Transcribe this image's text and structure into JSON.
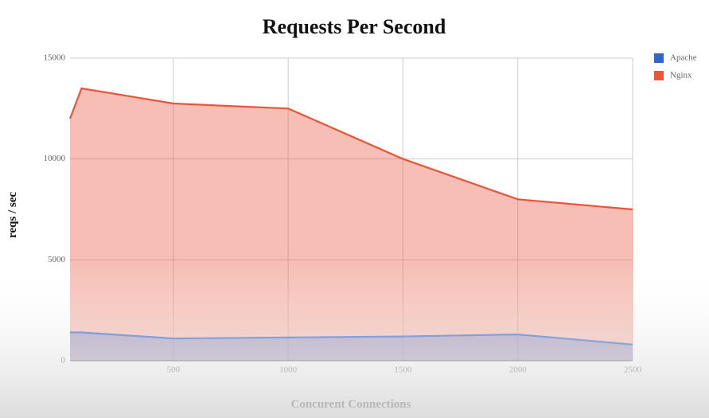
{
  "chart_data": {
    "type": "area",
    "title": "Requests Per Second",
    "x_label": "Concurent Connections",
    "y_label": "reqs / sec",
    "x": [
      50,
      100,
      500,
      1000,
      1500,
      2000,
      2500
    ],
    "series": [
      {
        "name": "Apache",
        "color": "#3366cc",
        "values": [
          1400,
          1400,
          1100,
          1150,
          1200,
          1300,
          800
        ]
      },
      {
        "name": "Nginx",
        "color": "#e8553a",
        "values": [
          12000,
          13500,
          12750,
          12500,
          10000,
          8000,
          7500
        ]
      }
    ],
    "xlim": [
      50,
      2500
    ],
    "ylim": [
      0,
      15000
    ],
    "xticks": [
      500,
      1000,
      1500,
      2000,
      2500
    ],
    "yticks": [
      0,
      5000,
      10000,
      15000
    ],
    "grid": true,
    "legend": "top-right"
  }
}
